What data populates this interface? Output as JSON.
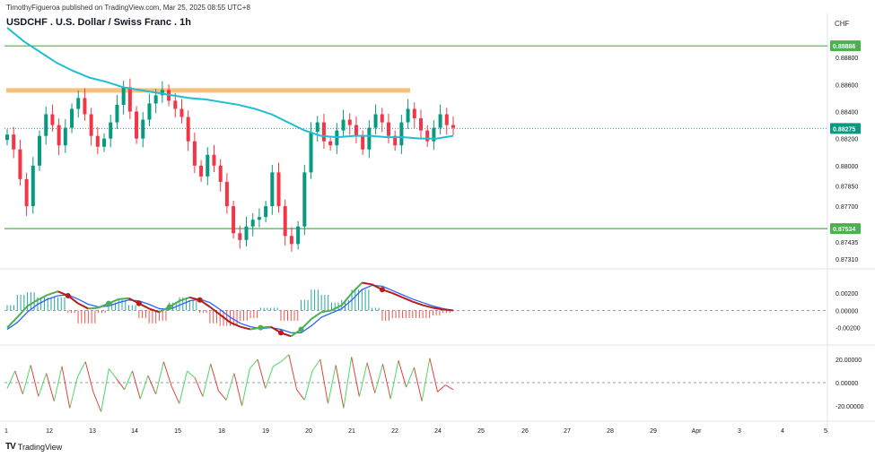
{
  "header": {
    "published_line": "TimothyFigueroa published on TradingView.com, Mar 25, 2025 08:55 UTC+8",
    "symbol_title": "USDCHF . U.S. Dollar / Swiss Franc . 1h",
    "currency": "CHF"
  },
  "footer": {
    "brand": "TradingView",
    "logo": "TV"
  },
  "chart_data": {
    "type": "candlestick",
    "title": "USDCHF . U.S. Dollar / Swiss Franc . 1h",
    "x_ticks": [
      "1",
      "12",
      "13",
      "14",
      "15",
      "18",
      "19",
      "20",
      "21",
      "22",
      "24",
      "25",
      "26",
      "27",
      "28",
      "29",
      "Apr",
      "3",
      "4",
      "5"
    ],
    "price_axis": {
      "ticks": [
        "0.88800",
        "0.88600",
        "0.88400",
        "0.88200",
        "0.88000",
        "0.87850",
        "0.87700",
        "0.87435",
        "0.87310"
      ],
      "ylim": [
        0.8725,
        0.8896
      ]
    },
    "price_labels": {
      "upper_level": "0.88886",
      "current_price": "0.88275",
      "lower_level": "0.87534"
    },
    "horizontal_levels": [
      {
        "name": "resistance",
        "value": 0.88886,
        "color": "#4caf50"
      },
      {
        "name": "support",
        "value": 0.87534,
        "color": "#4caf50"
      },
      {
        "name": "zone",
        "value": 0.8856,
        "color": "#f7b96b"
      },
      {
        "name": "current",
        "value": 0.88275,
        "color": "#26a69a"
      }
    ],
    "ohlc_closes": [
      0.8823,
      0.8812,
      0.879,
      0.877,
      0.88,
      0.8822,
      0.8838,
      0.883,
      0.8815,
      0.8828,
      0.8842,
      0.885,
      0.8838,
      0.8822,
      0.8814,
      0.882,
      0.8832,
      0.8845,
      0.8858,
      0.884,
      0.882,
      0.8834,
      0.8846,
      0.8852,
      0.8856,
      0.8848,
      0.8842,
      0.8836,
      0.8818,
      0.88,
      0.8792,
      0.8808,
      0.88,
      0.8788,
      0.877,
      0.875,
      0.8745,
      0.8755,
      0.876,
      0.8762,
      0.877,
      0.8795,
      0.877,
      0.8748,
      0.8742,
      0.8755,
      0.8795,
      0.8825,
      0.8832,
      0.8818,
      0.8815,
      0.8826,
      0.8834,
      0.883,
      0.8822,
      0.8812,
      0.8828,
      0.8838,
      0.8832,
      0.8822,
      0.8815,
      0.8832,
      0.8842,
      0.8835,
      0.8826,
      0.8818,
      0.8828,
      0.8838,
      0.883,
      0.8828
    ],
    "moving_average": [
      0.8902,
      0.8892,
      0.8884,
      0.8876,
      0.887,
      0.8865,
      0.8862,
      0.8858,
      0.8856,
      0.8854,
      0.8852,
      0.885,
      0.8849,
      0.8847,
      0.8845,
      0.8842,
      0.8838,
      0.8832,
      0.8826,
      0.8822,
      0.8821,
      0.8822,
      0.8822,
      0.8821,
      0.8821,
      0.882,
      0.882,
      0.8822
    ],
    "macd_axis": {
      "ticks": [
        "0.00200",
        "0.00000",
        "-0.00200"
      ],
      "ylim": [
        -0.0037,
        0.0045
      ]
    },
    "macd_line": [
      -0.002,
      -0.0008,
      0.0005,
      0.0012,
      0.0018,
      0.0022,
      0.0017,
      0.0008,
      0.0002,
      0.0003,
      0.0008,
      0.0013,
      0.0014,
      0.0008,
      0.0002,
      -0.0002,
      0.0004,
      0.0011,
      0.0015,
      0.0012,
      0.0004,
      -0.0005,
      -0.0014,
      -0.0019,
      -0.0022,
      -0.002,
      -0.0019,
      -0.0026,
      -0.003,
      -0.0022,
      -0.001,
      -0.0002,
      0.0,
      0.0006,
      0.002,
      0.0032,
      0.003,
      0.0024,
      0.002,
      0.0015,
      0.001,
      0.0006,
      0.0003,
      0.0001,
      0.0
    ],
    "signal_line": [
      -0.0022,
      -0.0014,
      -0.0002,
      0.0007,
      0.0013,
      0.0017,
      0.0018,
      0.0013,
      0.0007,
      0.0004,
      0.0005,
      0.0009,
      0.0012,
      0.0011,
      0.0007,
      0.0002,
      0.0001,
      0.0006,
      0.0011,
      0.0013,
      0.0009,
      0.0001,
      -0.0008,
      -0.0015,
      -0.0019,
      -0.0021,
      -0.002,
      -0.0022,
      -0.0026,
      -0.0026,
      -0.0018,
      -0.0008,
      -0.0003,
      0.0002,
      0.0012,
      0.0024,
      0.0029,
      0.0028,
      0.0023,
      0.0018,
      0.0013,
      0.0009,
      0.0005,
      0.0002,
      0.0
    ],
    "osc_axis": {
      "ticks": [
        "20.00000",
        "0.00000",
        "-20.00000"
      ],
      "ylim": [
        -30,
        30
      ]
    },
    "osc_values": [
      -5,
      10,
      -10,
      15,
      -12,
      8,
      -16,
      14,
      -22,
      5,
      18,
      -8,
      -25,
      12,
      3,
      -6,
      10,
      -14,
      6,
      -10,
      18,
      -3,
      -18,
      10,
      4,
      -12,
      16,
      -7,
      -15,
      8,
      -20,
      12,
      20,
      -5,
      14,
      18,
      24,
      -6,
      -15,
      10,
      20,
      -18,
      15,
      -22,
      22,
      -12,
      17,
      -9,
      16,
      -14,
      19,
      -4,
      13,
      -16,
      21,
      -8,
      -2,
      -6
    ]
  }
}
